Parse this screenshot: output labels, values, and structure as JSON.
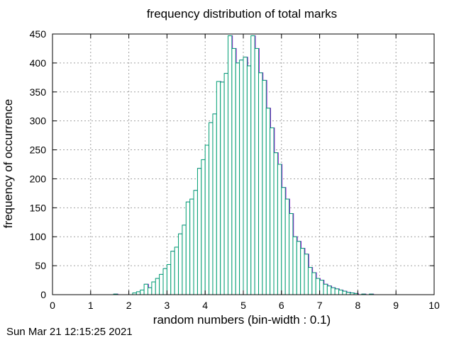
{
  "chart_data": {
    "type": "bar",
    "title": "frequency distribution of total marks",
    "xlabel": "random numbers (bin-width : 0.1)",
    "ylabel": "frequency of occurrence",
    "xlim": [
      0,
      10
    ],
    "ylim": [
      0,
      450
    ],
    "xticks": [
      "0",
      "1",
      "2",
      "3",
      "4",
      "5",
      "6",
      "7",
      "8",
      "9",
      "10"
    ],
    "yticks": [
      "0",
      "50",
      "100",
      "150",
      "200",
      "250",
      "300",
      "350",
      "400",
      "450"
    ],
    "grid": true,
    "bin_width": 0.1,
    "bins": [
      {
        "x": 1.6,
        "y": 1
      },
      {
        "x": 2.1,
        "y": 3
      },
      {
        "x": 2.2,
        "y": 5
      },
      {
        "x": 2.3,
        "y": 8
      },
      {
        "x": 2.4,
        "y": 18
      },
      {
        "x": 2.5,
        "y": 12
      },
      {
        "x": 2.6,
        "y": 22
      },
      {
        "x": 2.7,
        "y": 28
      },
      {
        "x": 2.8,
        "y": 35
      },
      {
        "x": 2.9,
        "y": 45
      },
      {
        "x": 3.0,
        "y": 52
      },
      {
        "x": 3.1,
        "y": 75
      },
      {
        "x": 3.2,
        "y": 82
      },
      {
        "x": 3.3,
        "y": 105
      },
      {
        "x": 3.4,
        "y": 120
      },
      {
        "x": 3.5,
        "y": 160
      },
      {
        "x": 3.6,
        "y": 165
      },
      {
        "x": 3.7,
        "y": 180
      },
      {
        "x": 3.8,
        "y": 218
      },
      {
        "x": 3.9,
        "y": 233
      },
      {
        "x": 4.0,
        "y": 258
      },
      {
        "x": 4.1,
        "y": 297
      },
      {
        "x": 4.2,
        "y": 312
      },
      {
        "x": 4.3,
        "y": 368
      },
      {
        "x": 4.4,
        "y": 367
      },
      {
        "x": 4.5,
        "y": 382
      },
      {
        "x": 4.6,
        "y": 447
      },
      {
        "x": 4.7,
        "y": 425
      },
      {
        "x": 4.8,
        "y": 400
      },
      {
        "x": 4.9,
        "y": 405
      },
      {
        "x": 5.0,
        "y": 410
      },
      {
        "x": 5.1,
        "y": 395
      },
      {
        "x": 5.2,
        "y": 447
      },
      {
        "x": 5.3,
        "y": 425
      },
      {
        "x": 5.4,
        "y": 383
      },
      {
        "x": 5.5,
        "y": 370
      },
      {
        "x": 5.6,
        "y": 322
      },
      {
        "x": 5.7,
        "y": 288
      },
      {
        "x": 5.8,
        "y": 245
      },
      {
        "x": 5.9,
        "y": 225
      },
      {
        "x": 6.0,
        "y": 185
      },
      {
        "x": 6.1,
        "y": 165
      },
      {
        "x": 6.2,
        "y": 140
      },
      {
        "x": 6.3,
        "y": 100
      },
      {
        "x": 6.4,
        "y": 92
      },
      {
        "x": 6.5,
        "y": 80
      },
      {
        "x": 6.6,
        "y": 70
      },
      {
        "x": 6.7,
        "y": 47
      },
      {
        "x": 6.8,
        "y": 38
      },
      {
        "x": 6.9,
        "y": 28
      },
      {
        "x": 7.0,
        "y": 25
      },
      {
        "x": 7.1,
        "y": 18
      },
      {
        "x": 7.2,
        "y": 15
      },
      {
        "x": 7.3,
        "y": 12
      },
      {
        "x": 7.4,
        "y": 10
      },
      {
        "x": 7.5,
        "y": 8
      },
      {
        "x": 7.6,
        "y": 6
      },
      {
        "x": 7.7,
        "y": 4
      },
      {
        "x": 7.8,
        "y": 3
      },
      {
        "x": 7.9,
        "y": 2
      },
      {
        "x": 8.1,
        "y": 1
      },
      {
        "x": 8.3,
        "y": 1
      }
    ],
    "colors": {
      "fill": "#ffffff",
      "bar_front": "#009e73",
      "bar_back": "#9400d3",
      "grid": "#a0a0a0",
      "axis": "#000000"
    }
  },
  "timestamp": "Sun Mar 21 12:15:25 2021"
}
